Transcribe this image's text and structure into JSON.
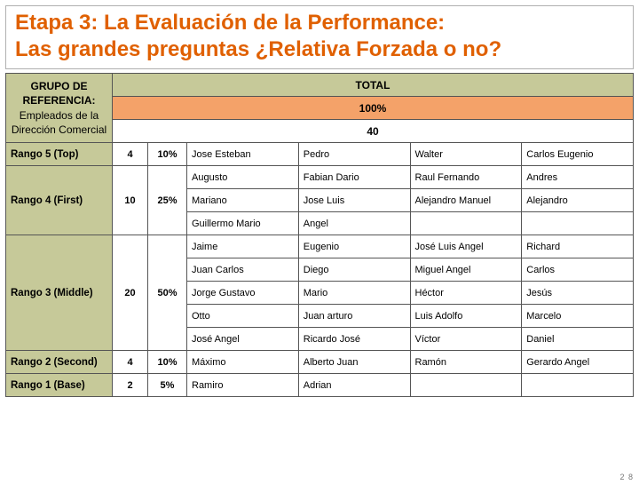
{
  "title_line1": "Etapa 3: La Evaluación de la Performance:",
  "title_line2": "Las grandes preguntas ¿Relativa Forzada o no?",
  "reference": {
    "heading": "GRUPO DE REFERENCIA:",
    "sub": "Empleados de la Dirección Comercial"
  },
  "header": {
    "total_label": "TOTAL",
    "percent": "100%",
    "count": "40"
  },
  "ranks": [
    {
      "label": "Rango 5 (Top)",
      "count": "4",
      "pct": "10%",
      "rows": [
        [
          "Jose Esteban",
          "Pedro",
          "Walter",
          "Carlos Eugenio"
        ]
      ]
    },
    {
      "label": "Rango 4 (First)",
      "count": "10",
      "pct": "25%",
      "rows": [
        [
          "Augusto",
          "Fabian Dario",
          "Raul Fernando",
          "Andres"
        ],
        [
          "Mariano",
          "Jose Luis",
          "Alejandro Manuel",
          "Alejandro"
        ],
        [
          "Guillermo Mario",
          "Angel",
          "",
          ""
        ]
      ]
    },
    {
      "label": "Rango 3 (Middle)",
      "count": "20",
      "pct": "50%",
      "rows": [
        [
          "Jaime",
          "Eugenio",
          "José Luis Angel",
          "Richard"
        ],
        [
          "Juan Carlos",
          "Diego",
          "Miguel Angel",
          "Carlos"
        ],
        [
          "Jorge Gustavo",
          "Mario",
          "Héctor",
          "Jesús"
        ],
        [
          "Otto",
          "Juan arturo",
          "Luis Adolfo",
          "Marcelo"
        ],
        [
          "José Angel",
          "Ricardo José",
          "Víctor",
          "Daniel"
        ]
      ]
    },
    {
      "label": "Rango 2 (Second)",
      "count": "4",
      "pct": "10%",
      "rows": [
        [
          "Máximo",
          "Alberto Juan",
          "Ramón",
          "Gerardo Angel"
        ]
      ]
    },
    {
      "label": "Rango 1 (Base)",
      "count": "2",
      "pct": "5%",
      "rows": [
        [
          "Ramiro",
          "Adrian",
          "",
          ""
        ]
      ]
    }
  ],
  "page_number": "2 8",
  "colors": {
    "title": "#e06000",
    "olive": "#c6c999",
    "peach": "#f4a269",
    "border": "#555555"
  }
}
